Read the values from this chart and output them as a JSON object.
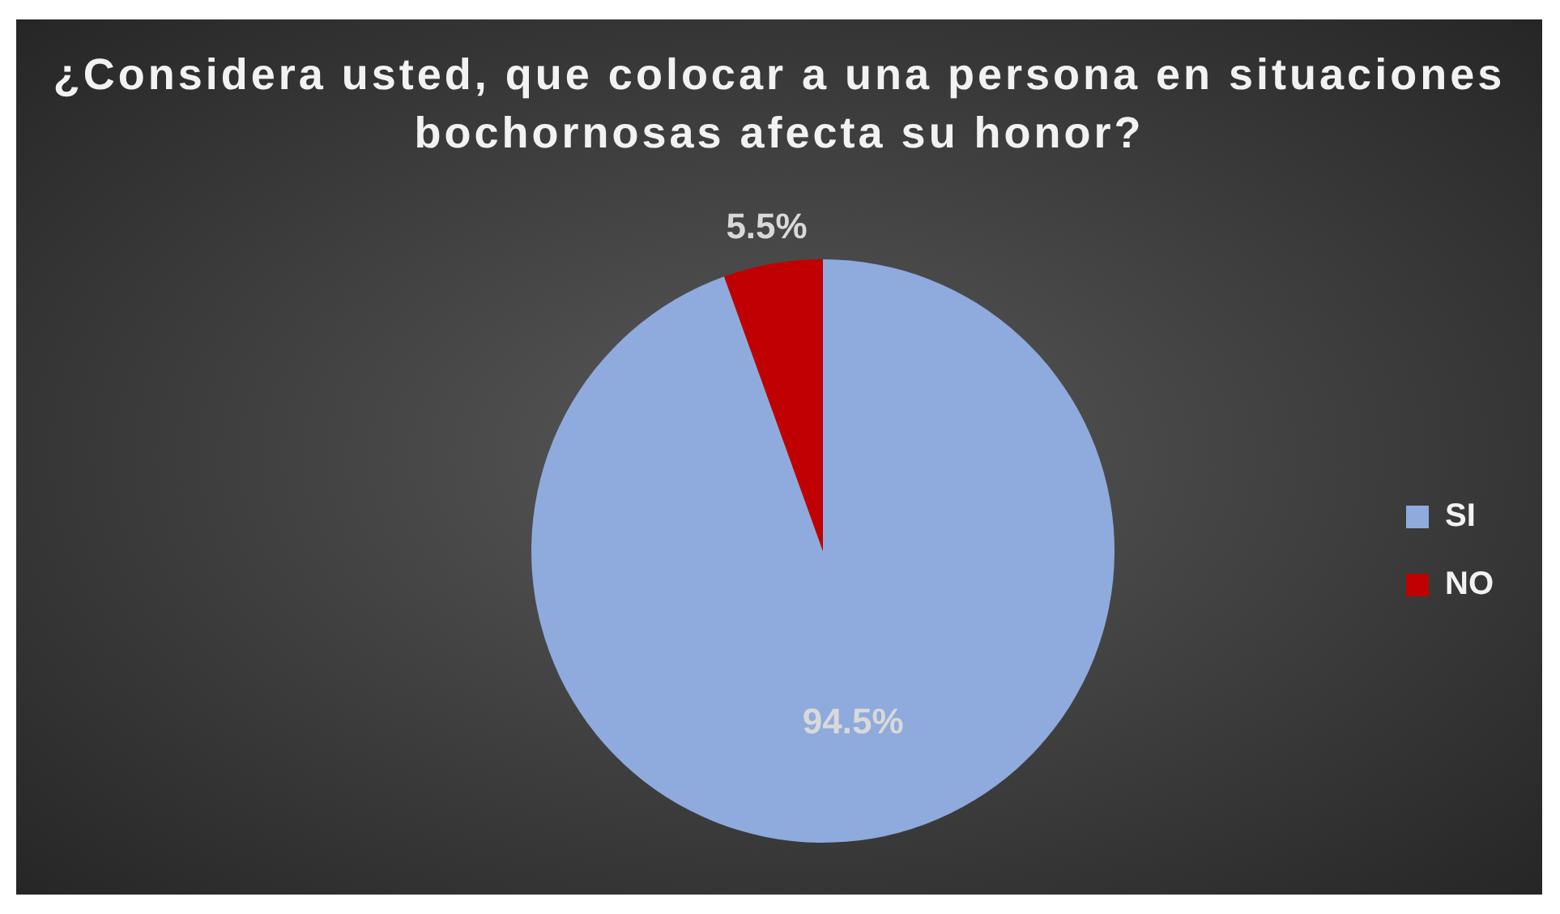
{
  "chart_data": {
    "type": "pie",
    "title": "¿Considera usted, que colocar a una persona en situaciones bochornosas afecta su honor?",
    "categories": [
      "SI",
      "NO"
    ],
    "values": [
      94.5,
      5.5
    ],
    "value_labels": [
      "94.5%",
      "5.5%"
    ],
    "colors": [
      "#8faadc",
      "#c00000"
    ],
    "legend": "right"
  }
}
